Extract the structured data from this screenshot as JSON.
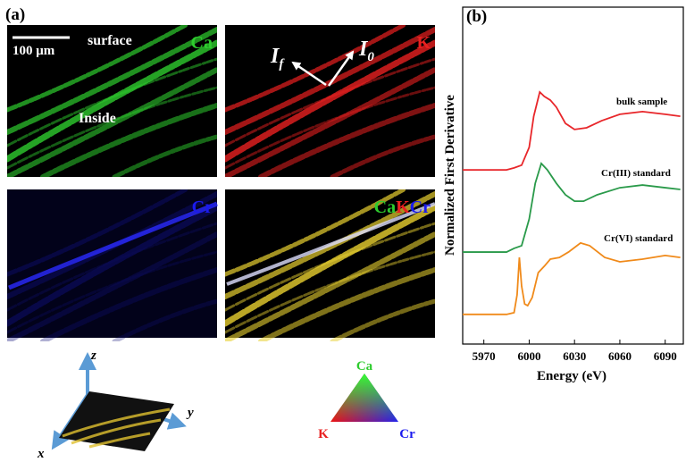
{
  "panel_a": {
    "label": "(a)",
    "scale_bar": "100 μm",
    "surface": "surface",
    "inside": "Inside",
    "ca_map": "Ca",
    "k_map": "K",
    "cr_map": "Cr",
    "i_f": {
      "main": "I",
      "sub": "f"
    },
    "i_0": {
      "main": "I",
      "sub": "0"
    },
    "composite": [
      "Ca",
      "K",
      "Cr"
    ],
    "triangle": {
      "top": "Ca",
      "left": "K",
      "right": "Cr"
    },
    "axes": {
      "x": "x",
      "y": "y",
      "z": "z"
    }
  },
  "chart_data": {
    "type": "line",
    "panel_label": "(b)",
    "x_label": "Energy (eV)",
    "y_label": "Normalized First Derivative",
    "xlim": [
      5956,
      6102
    ],
    "ylim": [
      0,
      100
    ],
    "xticks": [
      5970,
      6000,
      6030,
      6060,
      6090
    ],
    "series": [
      {
        "name": "bulk sample",
        "color": "#e8262a",
        "x": [
          5956,
          5985,
          5990,
          5995,
          6000,
          6003,
          6007,
          6010,
          6014,
          6018,
          6024,
          6030,
          6038,
          6048,
          6060,
          6075,
          6090,
          6100
        ],
        "values": [
          51.7,
          51.7,
          52.3,
          53.1,
          58.4,
          67.6,
          74.8,
          73.5,
          72.4,
          70.3,
          65.5,
          63.7,
          64.2,
          66.3,
          68.2,
          69.0,
          68.2,
          67.6
        ]
      },
      {
        "name": "Cr(III)  standard",
        "color": "#2a9a4a",
        "x": [
          5956,
          5985,
          5990,
          5995,
          6000,
          6004,
          6008,
          6012,
          6018,
          6024,
          6030,
          6036,
          6045,
          6060,
          6075,
          6090,
          6100
        ],
        "values": [
          27.3,
          27.3,
          28.4,
          29.2,
          37.1,
          47.7,
          53.6,
          51.7,
          47.7,
          44.3,
          42.4,
          42.4,
          44.3,
          46.4,
          47.2,
          46.4,
          45.9
        ]
      },
      {
        "name": "Cr(VI) standard",
        "color": "#f08a1a",
        "x": [
          5956,
          5985,
          5990,
          5992,
          5993.5,
          5995,
          5997,
          5999,
          6002,
          6006,
          6010,
          6014,
          6020,
          6026,
          6034,
          6040,
          6050,
          6060,
          6075,
          6090,
          6100
        ],
        "values": [
          8.8,
          8.8,
          9.3,
          14.6,
          25.7,
          17.2,
          11.9,
          11.4,
          13.8,
          21.2,
          23.1,
          25.2,
          25.7,
          27.3,
          30.0,
          29.2,
          25.7,
          24.4,
          25.2,
          26.3,
          25.7
        ]
      }
    ]
  }
}
